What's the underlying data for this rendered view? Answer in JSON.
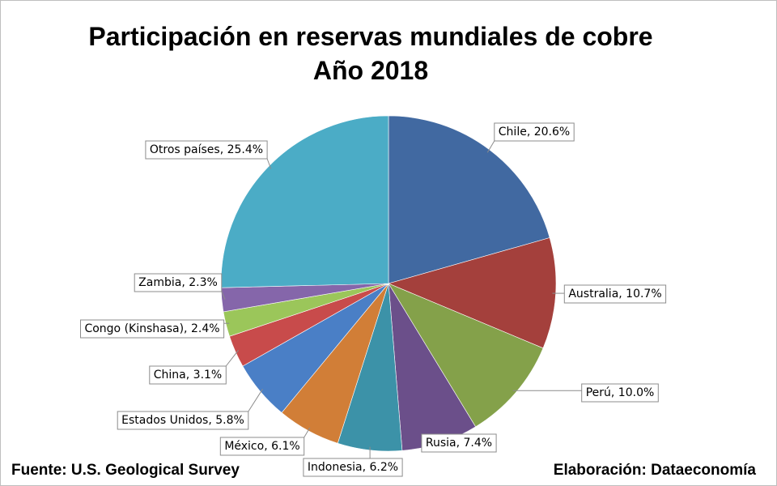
{
  "chart_data": {
    "type": "pie",
    "title": "Participación en reservas mundiales de cobre",
    "subtitle": "Año 2018",
    "unit": "%",
    "start_angle_deg": 0,
    "direction": "clockwise",
    "slices": [
      {
        "label": "Chile",
        "value": 20.6,
        "display": "Chile, 20.6%",
        "color": "#4169a1"
      },
      {
        "label": "Australia",
        "value": 10.7,
        "display": "Australia, 10.7%",
        "color": "#a4403c"
      },
      {
        "label": "Perú",
        "value": 10.0,
        "display": "Perú, 10.0%",
        "color": "#84a14a"
      },
      {
        "label": "Rusia",
        "value": 7.4,
        "display": "Rusia, 7.4%",
        "color": "#6b4f8a"
      },
      {
        "label": "Indonesia",
        "value": 6.2,
        "display": "Indonesia, 6.2%",
        "color": "#3c92a8"
      },
      {
        "label": "México",
        "value": 6.1,
        "display": "México, 6.1%",
        "color": "#d17e37"
      },
      {
        "label": "Estados Unidos",
        "value": 5.8,
        "display": "Estados Unidos, 5.8%",
        "color": "#4a7fc6"
      },
      {
        "label": "China",
        "value": 3.1,
        "display": "China, 3.1%",
        "color": "#c84b4b"
      },
      {
        "label": "Congo (Kinshasa)",
        "value": 2.4,
        "display": "Congo (Kinshasa), 2.4%",
        "color": "#9bc65a"
      },
      {
        "label": "Zambia",
        "value": 2.3,
        "display": "Zambia, 2.3%",
        "color": "#8566aa"
      },
      {
        "label": "Otros países",
        "value": 25.4,
        "display": "Otros países, 25.4%",
        "color": "#4bacc6"
      }
    ]
  },
  "footer": {
    "source": "Fuente: U.S. Geological Survey",
    "credit": "Elaboración: Dataeconomía"
  }
}
